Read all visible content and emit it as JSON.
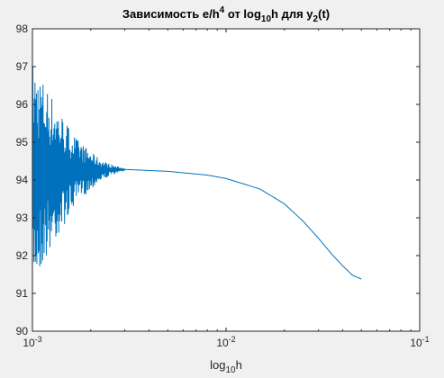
{
  "chart_data": {
    "type": "line",
    "title": {
      "prefix": "Зависимость e/h",
      "sup": "4",
      "mid1": " от log",
      "sub1": "10",
      "mid2": "h для y",
      "sub2": "2",
      "suffix": "(t)"
    },
    "xlabel": {
      "main": "log",
      "sub": "10",
      "tail": "h"
    },
    "ylabel": "",
    "x_scale": "log",
    "xlim": [
      0.001,
      0.1
    ],
    "ylim": [
      90,
      98
    ],
    "x_ticks": [
      {
        "base": "10",
        "exp": "-3"
      },
      {
        "base": "10",
        "exp": "-2"
      },
      {
        "base": "10",
        "exp": "-1"
      }
    ],
    "y_ticks": [
      "90",
      "91",
      "92",
      "93",
      "94",
      "95",
      "96",
      "97",
      "98"
    ],
    "grid": false,
    "colors": {
      "line": "#0072bd",
      "axes_bg": "#ffffff",
      "figure_bg": "#f0f0f0",
      "axis": "#262626"
    },
    "series": [
      {
        "x_range": [
          0.001,
          0.05
        ],
        "description_points": {
          "x": [
            0.003,
            0.005,
            0.008,
            0.01,
            0.015,
            0.02,
            0.025,
            0.03,
            0.035,
            0.04,
            0.045,
            0.05
          ],
          "y": [
            94.28,
            94.23,
            94.13,
            94.04,
            93.76,
            93.37,
            92.91,
            92.46,
            92.05,
            91.73,
            91.48,
            91.38
          ]
        },
        "noise_region": {
          "x": [
            0.001,
            0.0011,
            0.0013,
            0.0015,
            0.0017,
            0.002,
            0.0023,
            0.0027,
            0.003
          ],
          "amplitude": [
            3.0,
            2.6,
            1.9,
            1.3,
            0.85,
            0.5,
            0.25,
            0.1,
            0.03
          ]
        }
      }
    ]
  }
}
